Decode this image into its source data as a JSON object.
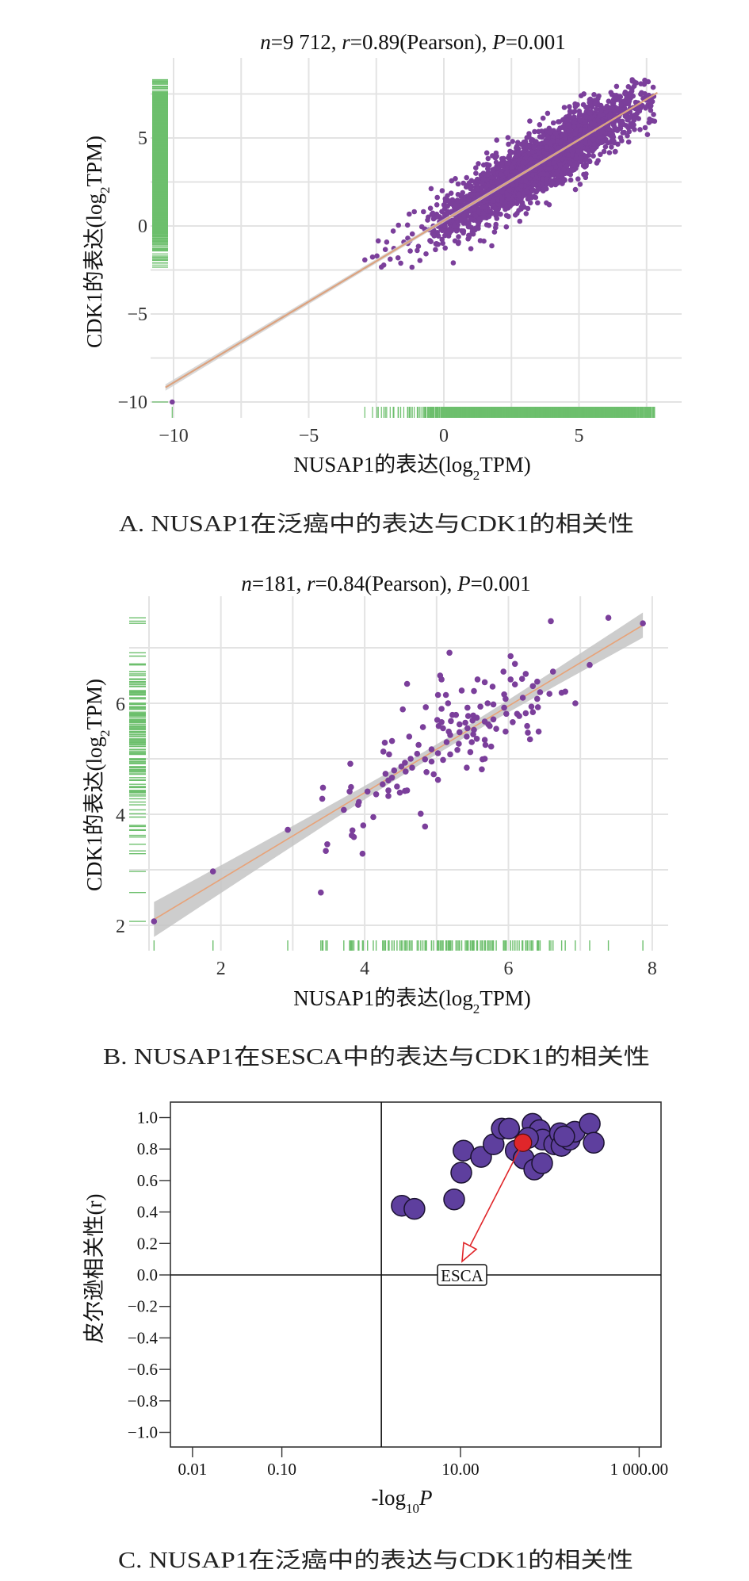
{
  "chart_data": [
    {
      "panel": "A",
      "type": "scatter",
      "title_parts": [
        {
          "text": "n",
          "italic": true
        },
        {
          "text": "=9 712, ",
          "italic": false
        },
        {
          "text": "r",
          "italic": true
        },
        {
          "text": "=0.89(Pearson), ",
          "italic": false
        },
        {
          "text": "P",
          "italic": true
        },
        {
          "text": "=0.001",
          "italic": false
        }
      ],
      "n": 9712,
      "r": 0.89,
      "method": "Pearson",
      "p": 0.001,
      "xlabel": {
        "pre": "NUSAP1的表达(log",
        "sub": "2",
        "post": "TPM)"
      },
      "ylabel": {
        "pre": "CDK1的表达(log",
        "sub": "2",
        "post": "TPM)"
      },
      "xlim": [
        -10.8,
        8.8
      ],
      "ylim": [
        -10.9,
        9.4
      ],
      "x_ticks": [
        -10,
        -5,
        0,
        5
      ],
      "x_tick_labels": [
        "−10",
        "−5",
        "0",
        "5"
      ],
      "y_ticks": [
        -10,
        -5,
        0,
        5
      ],
      "y_tick_labels": [
        "−10",
        "−5",
        "0",
        "5"
      ],
      "grid": [
        -10,
        -7.5,
        -5,
        -2.5,
        0,
        2.5,
        5,
        7.5
      ],
      "fit": {
        "slope": 0.92,
        "intercept": 0.3,
        "x_range": [
          -10.3,
          7.9
        ]
      },
      "cloud": {
        "x_mean": 3.6,
        "x_sd": 1.9,
        "x_range": [
          -3,
          7.8
        ],
        "noise_sd": 0.85,
        "y_range": [
          -2.6,
          8.4
        ],
        "rendered_points": 2600
      },
      "outliers": [
        [
          -10.05,
          -10
        ]
      ],
      "caption": "A. NUSAP1在泛癌中的表达与CDK1的相关性",
      "point_color": "#7b3f9b",
      "rug_color": "#6dbf6d",
      "line_color": "#dca27e"
    },
    {
      "panel": "B",
      "type": "scatter",
      "title_parts": [
        {
          "text": "n",
          "italic": true
        },
        {
          "text": "=181, ",
          "italic": false
        },
        {
          "text": "r",
          "italic": true
        },
        {
          "text": "=0.84(Pearson), ",
          "italic": false
        },
        {
          "text": "P",
          "italic": true
        },
        {
          "text": "=0.001",
          "italic": false
        }
      ],
      "n": 181,
      "r": 0.84,
      "method": "Pearson",
      "p": 0.001,
      "xlabel": {
        "pre": "NUSAP1的表达(log",
        "sub": "2",
        "post": "TPM)"
      },
      "ylabel": {
        "pre": "CDK1的表达(log",
        "sub": "2",
        "post": "TPM)"
      },
      "xlim": [
        0.75,
        8.2
      ],
      "ylim": [
        1.55,
        7.93
      ],
      "x_ticks": [
        2,
        4,
        6,
        8
      ],
      "x_tick_labels": [
        "2",
        "4",
        "6",
        "8"
      ],
      "y_ticks": [
        2,
        4,
        6
      ],
      "y_tick_labels": [
        "2",
        "4",
        "6"
      ],
      "x_grid": [
        1,
        2,
        3,
        4,
        5,
        6,
        7,
        8
      ],
      "y_grid": [
        2,
        3,
        4,
        5,
        6,
        7
      ],
      "fit": {
        "slope": 0.78,
        "intercept": 1.27,
        "x_range": [
          1.07,
          7.87
        ]
      },
      "ci": {
        "center": 5.1,
        "min_halfwidth": 0.09,
        "scale": 1.2
      },
      "points": [
        [
          1.07,
          2.07
        ],
        [
          1.89,
          2.97
        ],
        [
          3.39,
          2.59
        ],
        [
          2.93,
          3.72
        ],
        [
          6.59,
          7.48
        ],
        [
          7.39,
          7.54
        ],
        [
          7.87,
          7.44
        ],
        [
          5.18,
          6.91
        ],
        [
          6.03,
          6.85
        ],
        [
          6.09,
          6.71
        ],
        [
          5.93,
          6.57
        ],
        [
          7.13,
          6.69
        ],
        [
          6.62,
          6.57
        ],
        [
          4.59,
          6.35
        ],
        [
          5.05,
          6.5
        ],
        [
          5.07,
          6.43
        ],
        [
          5.57,
          6.43
        ],
        [
          5.67,
          6.38
        ],
        [
          5.78,
          6.3
        ],
        [
          6.03,
          6.43
        ],
        [
          6.19,
          6.44
        ],
        [
          6.24,
          6.53
        ],
        [
          6.09,
          6.34
        ],
        [
          6.34,
          6.31
        ],
        [
          6.4,
          6.39
        ],
        [
          6.44,
          6.2
        ],
        [
          6.57,
          6.17
        ],
        [
          6.74,
          6.19
        ],
        [
          6.79,
          6.21
        ],
        [
          6.93,
          6.0
        ],
        [
          5.02,
          6.15
        ],
        [
          5.13,
          6.15
        ],
        [
          5.35,
          6.23
        ],
        [
          5.52,
          6.22
        ],
        [
          5.94,
          6.16
        ],
        [
          5.96,
          6.08
        ],
        [
          6.2,
          6.1
        ],
        [
          6.4,
          6.08
        ],
        [
          4.85,
          5.93
        ],
        [
          4.53,
          5.89
        ],
        [
          5.07,
          5.9
        ],
        [
          5.16,
          6.0
        ],
        [
          5.43,
          5.92
        ],
        [
          5.61,
          5.94
        ],
        [
          5.71,
          6.0
        ],
        [
          5.79,
          5.98
        ],
        [
          5.94,
          5.92
        ],
        [
          6.32,
          5.94
        ],
        [
          6.41,
          5.93
        ],
        [
          6.34,
          5.84
        ],
        [
          5.97,
          5.81
        ],
        [
          6.12,
          5.81
        ],
        [
          6.15,
          5.77
        ],
        [
          6.24,
          5.82
        ],
        [
          5.22,
          5.79
        ],
        [
          5.27,
          5.79
        ],
        [
          5.44,
          5.77
        ],
        [
          5.51,
          5.78
        ],
        [
          5.56,
          5.74
        ],
        [
          5.01,
          5.7
        ],
        [
          5.07,
          5.66
        ],
        [
          5.2,
          5.68
        ],
        [
          5.32,
          5.62
        ],
        [
          5.4,
          5.65
        ],
        [
          5.5,
          5.69
        ],
        [
          5.67,
          5.67
        ],
        [
          5.79,
          5.71
        ],
        [
          6.06,
          5.66
        ],
        [
          4.81,
          5.57
        ],
        [
          5.03,
          5.59
        ],
        [
          5.09,
          5.55
        ],
        [
          5.17,
          5.49
        ],
        [
          5.43,
          5.55
        ],
        [
          5.52,
          5.52
        ],
        [
          5.72,
          5.62
        ],
        [
          5.74,
          5.59
        ],
        [
          5.83,
          5.54
        ],
        [
          5.96,
          5.49
        ],
        [
          6.26,
          5.59
        ],
        [
          6.27,
          5.47
        ],
        [
          6.42,
          5.49
        ],
        [
          6.3,
          5.35
        ],
        [
          4.62,
          5.4
        ],
        [
          5.19,
          5.43
        ],
        [
          5.32,
          5.48
        ],
        [
          5.42,
          5.4
        ],
        [
          5.51,
          5.44
        ],
        [
          5.56,
          5.36
        ],
        [
          5.67,
          5.34
        ],
        [
          5.76,
          5.22
        ],
        [
          4.38,
          5.32
        ],
        [
          4.28,
          5.29
        ],
        [
          4.75,
          5.25
        ],
        [
          5.14,
          5.3
        ],
        [
          5.31,
          5.27
        ],
        [
          5.49,
          5.3
        ],
        [
          5.68,
          5.25
        ],
        [
          4.26,
          5.13
        ],
        [
          4.34,
          5.08
        ],
        [
          4.93,
          5.17
        ],
        [
          5.02,
          5.1
        ],
        [
          5.19,
          5.08
        ],
        [
          5.29,
          5.16
        ],
        [
          5.47,
          5.12
        ],
        [
          4.73,
          5.09
        ],
        [
          4.64,
          5.0
        ],
        [
          4.84,
          4.99
        ],
        [
          4.93,
          4.95
        ],
        [
          5.09,
          4.98
        ],
        [
          5.64,
          4.99
        ],
        [
          5.67,
          5.0
        ],
        [
          4.56,
          4.93
        ],
        [
          3.8,
          4.91
        ],
        [
          4.51,
          4.86
        ],
        [
          4.66,
          4.84
        ],
        [
          5.42,
          4.84
        ],
        [
          5.63,
          4.81
        ],
        [
          4.41,
          4.79
        ],
        [
          4.57,
          4.77
        ],
        [
          4.29,
          4.73
        ],
        [
          4.86,
          4.76
        ],
        [
          4.96,
          4.72
        ],
        [
          4.38,
          4.66
        ],
        [
          4.33,
          4.61
        ],
        [
          5.02,
          4.62
        ],
        [
          4.25,
          4.54
        ],
        [
          3.42,
          4.48
        ],
        [
          3.81,
          4.49
        ],
        [
          4.45,
          4.5
        ],
        [
          4.33,
          4.43
        ],
        [
          3.79,
          4.41
        ],
        [
          4.04,
          4.41
        ],
        [
          4.49,
          4.39
        ],
        [
          4.56,
          4.42
        ],
        [
          4.59,
          4.43
        ],
        [
          4.16,
          4.36
        ],
        [
          4.33,
          4.33
        ],
        [
          3.41,
          4.28
        ],
        [
          3.92,
          4.22
        ],
        [
          3.91,
          4.17
        ],
        [
          3.71,
          4.08
        ],
        [
          4.78,
          4.01
        ],
        [
          4.12,
          3.95
        ],
        [
          4.84,
          3.78
        ],
        [
          3.98,
          3.8
        ],
        [
          3.83,
          3.71
        ],
        [
          3.82,
          3.62
        ],
        [
          3.85,
          3.59
        ],
        [
          3.48,
          3.46
        ],
        [
          3.46,
          3.34
        ],
        [
          3.97,
          3.29
        ]
      ],
      "caption": "B. NUSAP1在SESCA中的表达与CDK1的相关性",
      "point_color": "#7b3f9b",
      "rug_color": "#6dbf6d",
      "line_color": "#e8a277",
      "band_color": "#c4c4c4"
    },
    {
      "panel": "C",
      "type": "scatter",
      "xscale": "log",
      "xlabel": {
        "pre": "-log",
        "sub": "10",
        "post": "P"
      },
      "ylabel": "皮尔逊相关性(r)",
      "xlim": [
        0.0056,
        1780
      ],
      "ylim": [
        -1.1,
        1.1
      ],
      "x_ticks": [
        0.01,
        0.1,
        10,
        1000
      ],
      "x_tick_labels": [
        "0.01",
        "0.10",
        "10.00",
        "1 000.00"
      ],
      "y_ticks": [
        1.0,
        0.8,
        0.6,
        0.4,
        0.2,
        0.0,
        -0.2,
        -0.4,
        -0.6,
        -0.8,
        -1.0
      ],
      "y_tick_labels": [
        "1.0",
        "0.8",
        "0.6",
        "0.4",
        "0.2",
        "0.0",
        "−0.2",
        "−0.4",
        "−0.6",
        "−0.8",
        "−1.0"
      ],
      "threshold_x": 1.3,
      "threshold_y": 0,
      "points": [
        [
          2.2,
          0.44
        ],
        [
          3.05,
          0.42
        ],
        [
          8.5,
          0.48
        ],
        [
          10.2,
          0.65
        ],
        [
          10.8,
          0.79
        ],
        [
          17,
          0.75
        ],
        [
          23.5,
          0.83
        ],
        [
          29,
          0.93
        ],
        [
          35,
          0.93
        ],
        [
          41.5,
          0.79
        ],
        [
          51,
          0.74
        ],
        [
          64,
          0.96
        ],
        [
          77,
          0.92
        ],
        [
          67,
          0.67
        ],
        [
          82,
          0.71
        ],
        [
          83,
          0.86
        ],
        [
          57,
          0.87
        ],
        [
          112,
          0.83
        ],
        [
          130,
          0.9
        ],
        [
          135,
          0.82
        ],
        [
          167,
          0.86
        ],
        [
          190,
          0.91
        ],
        [
          280,
          0.96
        ],
        [
          310,
          0.84
        ],
        [
          145,
          0.88
        ]
      ],
      "highlight": {
        "label": "ESCA",
        "x": 50,
        "r": 0.84
      },
      "caption": "C. NUSAP1在泛癌中的表达与CDK1的相关性",
      "point_color": "#5e3f9e",
      "highlight_color": "#e0262a"
    }
  ]
}
